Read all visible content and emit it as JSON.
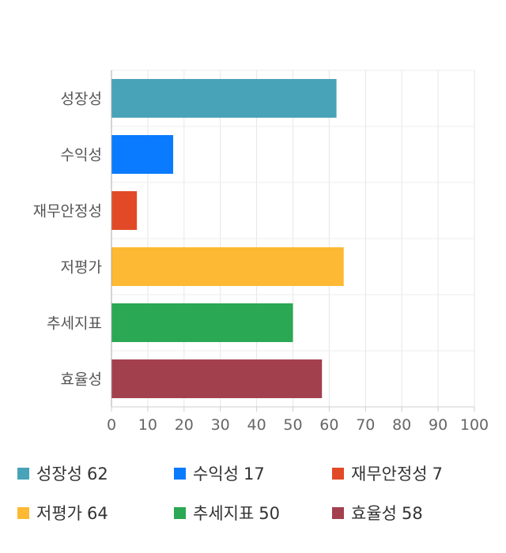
{
  "chart_data": {
    "type": "bar",
    "orientation": "horizontal",
    "categories": [
      "성장성",
      "수익성",
      "재무안정성",
      "저평가",
      "추세지표",
      "효율성"
    ],
    "values": [
      62,
      17,
      7,
      64,
      50,
      58
    ],
    "colors": [
      "#48a3b8",
      "#0a7bff",
      "#e24a27",
      "#fdb933",
      "#2aa853",
      "#a3404e"
    ],
    "xlim": [
      0,
      100
    ],
    "xticks": [
      0,
      10,
      20,
      30,
      40,
      50,
      60,
      70,
      80,
      90,
      100
    ],
    "grid": true,
    "legend": "bottom"
  },
  "legend": [
    {
      "name": "성장성",
      "value": "62"
    },
    {
      "name": "수익성",
      "value": "17"
    },
    {
      "name": "재무안정성",
      "value": "7"
    },
    {
      "name": "저평가",
      "value": "64"
    },
    {
      "name": "추세지표",
      "value": "50"
    },
    {
      "name": "효율성",
      "value": "58"
    }
  ]
}
